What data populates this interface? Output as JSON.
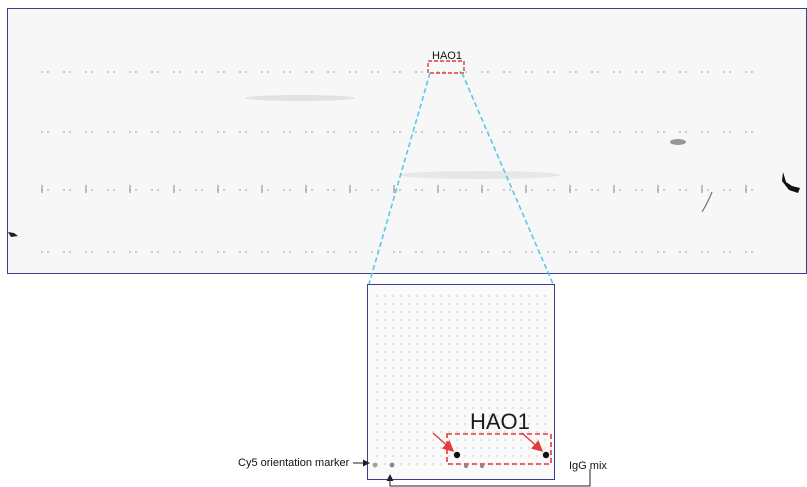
{
  "labels": {
    "target_small": "HAO1",
    "target_large": "HAO1",
    "cy5_marker": "Cy5 orientation marker",
    "igg_mix": "IgG mix"
  },
  "colors": {
    "panel_border": "#3b3f8f",
    "zoom_lines": "#5bc8e8",
    "highlight": "#e23b3b",
    "arrow": "#222222"
  }
}
